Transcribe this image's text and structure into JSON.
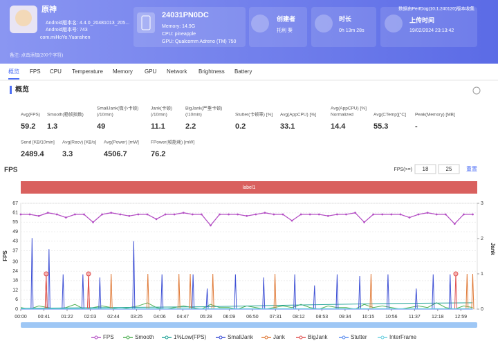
{
  "header": {
    "app": {
      "name": "原神",
      "version_name": "Android版本名: 4.4.0_20481013_205...",
      "version_code": "Android版本号: 743",
      "package": "com.miHoYo.Yuanshen"
    },
    "device": {
      "model": "24031PN0DC",
      "memory": "Memory: 14.9G",
      "cpu": "CPU: pineapple",
      "gpu": "GPU: Qualcomm Adreno (TM) 750"
    },
    "creator": {
      "label": "创建者",
      "value": "托利 葵"
    },
    "duration": {
      "label": "时长",
      "value": "0h 13m 28s"
    },
    "upload": {
      "label": "上传时间",
      "value": "19/02/2024 23:13:42"
    },
    "source": "数据由PerfDog(10.1.240120)版本收集",
    "note": "备注: 点击添加(200个字符)"
  },
  "tabs": [
    "概览",
    "FPS",
    "CPU",
    "Temperature",
    "Memory",
    "GPU",
    "Network",
    "Brightness",
    "Battery"
  ],
  "overview": {
    "title": "概览",
    "stats": [
      {
        "label": [
          "Avg(FPS)"
        ],
        "value": 59.2
      },
      {
        "label": [
          "Smooth(稳帧指数)"
        ],
        "value": 1.3
      },
      {
        "label": [
          "SmallJank(微小卡顿)",
          "(/10min)"
        ],
        "value": 49
      },
      {
        "label": [
          "Jank(卡顿)",
          "(/10min)"
        ],
        "value": 11.1
      },
      {
        "label": [
          "BigJank(严重卡顿)",
          "(/10min)"
        ],
        "value": 2.2
      },
      {
        "label": [
          "Stutter(卡顿率) [%]"
        ],
        "value": 0.2
      },
      {
        "label": [
          "Avg(AppCPU) [%]"
        ],
        "value": 33.1
      },
      {
        "label": [
          "Avg(AppCPU) [%]",
          "Normalized"
        ],
        "value": 14.4
      },
      {
        "label": [
          "Avg(CTemp)[°C]"
        ],
        "value": 55.3
      },
      {
        "label": [
          "Peak(Memory) [MB]"
        ],
        "value": "-"
      },
      {
        "label": [
          "Send [KB/10min]"
        ],
        "value": 2489.4
      },
      {
        "label": [
          "Avg(Recv) [KB/s]"
        ],
        "value": 3.3
      },
      {
        "label": [
          "Avg(Power) [mW]"
        ],
        "value": 4506.7
      },
      {
        "label": [
          "FPower(帧能耗) [mW]"
        ],
        "value": 76.2
      }
    ]
  },
  "fps_panel": {
    "title": "FPS",
    "threshold_label": "FPS(>=)",
    "threshold_low": 18,
    "threshold_high": 25,
    "reset": "重置",
    "band_label": "label1"
  },
  "chart_data": {
    "type": "line",
    "ylabel": "FPS",
    "y2label": "Jank",
    "xlim": [
      0,
      808
    ],
    "xticks": [
      {
        "value": 0,
        "label": "00:00"
      },
      {
        "value": 41,
        "label": "00:41"
      },
      {
        "value": 82,
        "label": "01:22"
      },
      {
        "value": 123,
        "label": "02:03"
      },
      {
        "value": 164,
        "label": "02:44"
      },
      {
        "value": 205,
        "label": "03:25"
      },
      {
        "value": 246,
        "label": "04:06"
      },
      {
        "value": 287,
        "label": "04:47"
      },
      {
        "value": 328,
        "label": "05:28"
      },
      {
        "value": 369,
        "label": "06:09"
      },
      {
        "value": 410,
        "label": "06:50"
      },
      {
        "value": 451,
        "label": "07:31"
      },
      {
        "value": 492,
        "label": "08:12"
      },
      {
        "value": 533,
        "label": "08:53"
      },
      {
        "value": 574,
        "label": "09:34"
      },
      {
        "value": 615,
        "label": "10:15"
      },
      {
        "value": 656,
        "label": "10:56"
      },
      {
        "value": 697,
        "label": "11:37"
      },
      {
        "value": 738,
        "label": "12:18"
      },
      {
        "value": 779,
        "label": "12:59"
      }
    ],
    "ylim": [
      0,
      67
    ],
    "yticks": [
      0,
      6,
      12,
      18,
      24,
      30,
      37,
      43,
      49,
      55,
      61,
      67
    ],
    "y2lim": [
      0,
      3
    ],
    "y2ticks": [
      0,
      1,
      2,
      3
    ],
    "grid": true,
    "x": [
      0,
      16,
      32,
      48,
      64,
      80,
      96,
      112,
      128,
      144,
      160,
      176,
      192,
      208,
      224,
      240,
      256,
      272,
      288,
      304,
      320,
      336,
      352,
      368,
      384,
      400,
      416,
      432,
      448,
      464,
      480,
      496,
      512,
      528,
      544,
      560,
      576,
      592,
      608,
      624,
      640,
      656,
      672,
      688,
      704,
      720,
      736,
      752,
      768,
      784,
      800
    ],
    "series": [
      {
        "name": "FPS",
        "color": "#b44fc4",
        "values": [
          60,
          60,
          59,
          61,
          60,
          58,
          60,
          60,
          55,
          60,
          61,
          60,
          59,
          60,
          60,
          57,
          60,
          60,
          61,
          60,
          60,
          53,
          60,
          60,
          60,
          59,
          60,
          61,
          60,
          60,
          56,
          60,
          60,
          60,
          59,
          60,
          60,
          61,
          55,
          60,
          60,
          60,
          60,
          58,
          60,
          61,
          60,
          60,
          54,
          60,
          60
        ]
      },
      {
        "name": "Smooth",
        "color": "#4caf50",
        "values": [
          1,
          0,
          2,
          1,
          0,
          1,
          3,
          0,
          1,
          2,
          1,
          0,
          1,
          2,
          4,
          1,
          0,
          1,
          2,
          1,
          0,
          3,
          1,
          1,
          0,
          2,
          1,
          0,
          1,
          2,
          1,
          3,
          1,
          0,
          2,
          1,
          1,
          0,
          3,
          1,
          2,
          1,
          0,
          1,
          2,
          1,
          4,
          1,
          0,
          2,
          1
        ]
      },
      {
        "name": "1%Low(FPS)",
        "color": "#26a69a",
        "x": [
          0,
          160,
          320,
          480,
          640,
          800
        ],
        "values": [
          0.5,
          1,
          1.5,
          2.5,
          3.5,
          4
        ]
      },
      {
        "name": "SmallJank",
        "color": "#3f51d5",
        "x": [
          20,
          50,
          75,
          110,
          140,
          200,
          250,
          305,
          330,
          380,
          430,
          485,
          520,
          560,
          600,
          650,
          700,
          730,
          760
        ],
        "values": [
          45,
          38,
          22,
          22,
          20,
          43,
          22,
          22,
          13,
          22,
          20,
          22,
          15,
          22,
          21,
          22,
          13,
          22,
          22
        ]
      },
      {
        "name": "Jank",
        "color": "#e07b39",
        "axis": "y2",
        "x": [
          45,
          120,
          160,
          225,
          280,
          300,
          340,
          450,
          620,
          790,
          800
        ],
        "values": [
          1,
          1,
          1,
          1,
          1,
          1,
          1,
          1,
          1,
          1,
          1
        ]
      },
      {
        "name": "BigJank",
        "color": "#e05050",
        "axis": "y2",
        "x": [
          45,
          120,
          770
        ],
        "values": [
          1,
          1,
          1
        ]
      },
      {
        "name": "Stutter",
        "color": "#5b8def",
        "x": [
          0,
          800
        ],
        "values": [
          0,
          0
        ]
      },
      {
        "name": "InterFrame",
        "color": "#6dd0e0",
        "x": [
          0,
          800
        ],
        "values": [
          0.3,
          0.3
        ]
      }
    ]
  }
}
